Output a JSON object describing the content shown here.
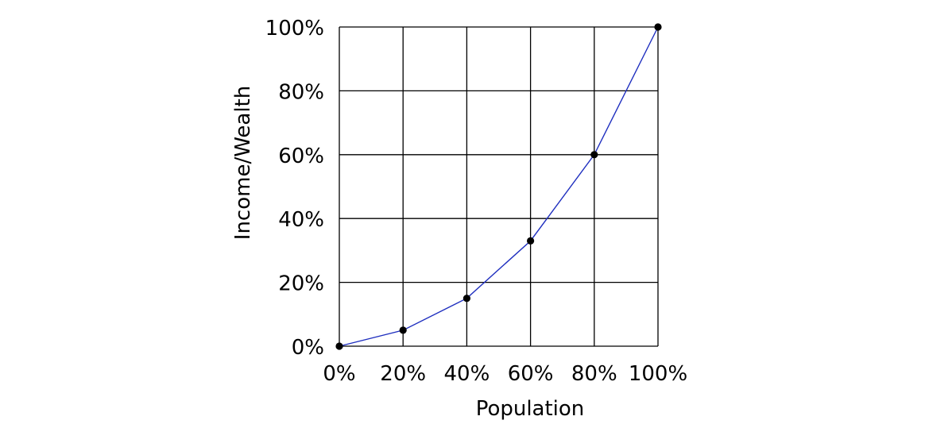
{
  "chart_data": {
    "type": "line",
    "title": "",
    "xlabel": "Population",
    "ylabel": "Income/Wealth",
    "xlim": [
      0,
      100
    ],
    "ylim": [
      0,
      100
    ],
    "grid": true,
    "x_ticks": [
      0,
      20,
      40,
      60,
      80,
      100
    ],
    "y_ticks": [
      0,
      20,
      40,
      60,
      80,
      100
    ],
    "x_tick_labels": [
      "0%",
      "20%",
      "40%",
      "60%",
      "80%",
      "100%"
    ],
    "y_tick_labels": [
      "0%",
      "20%",
      "40%",
      "60%",
      "80%",
      "100%"
    ],
    "series": [
      {
        "x": [
          0,
          20,
          40,
          60,
          80,
          100
        ],
        "y": [
          0,
          5,
          15,
          33,
          60,
          100
        ],
        "line_color": "#1f2fbf",
        "marker_color": "#000000"
      }
    ]
  }
}
